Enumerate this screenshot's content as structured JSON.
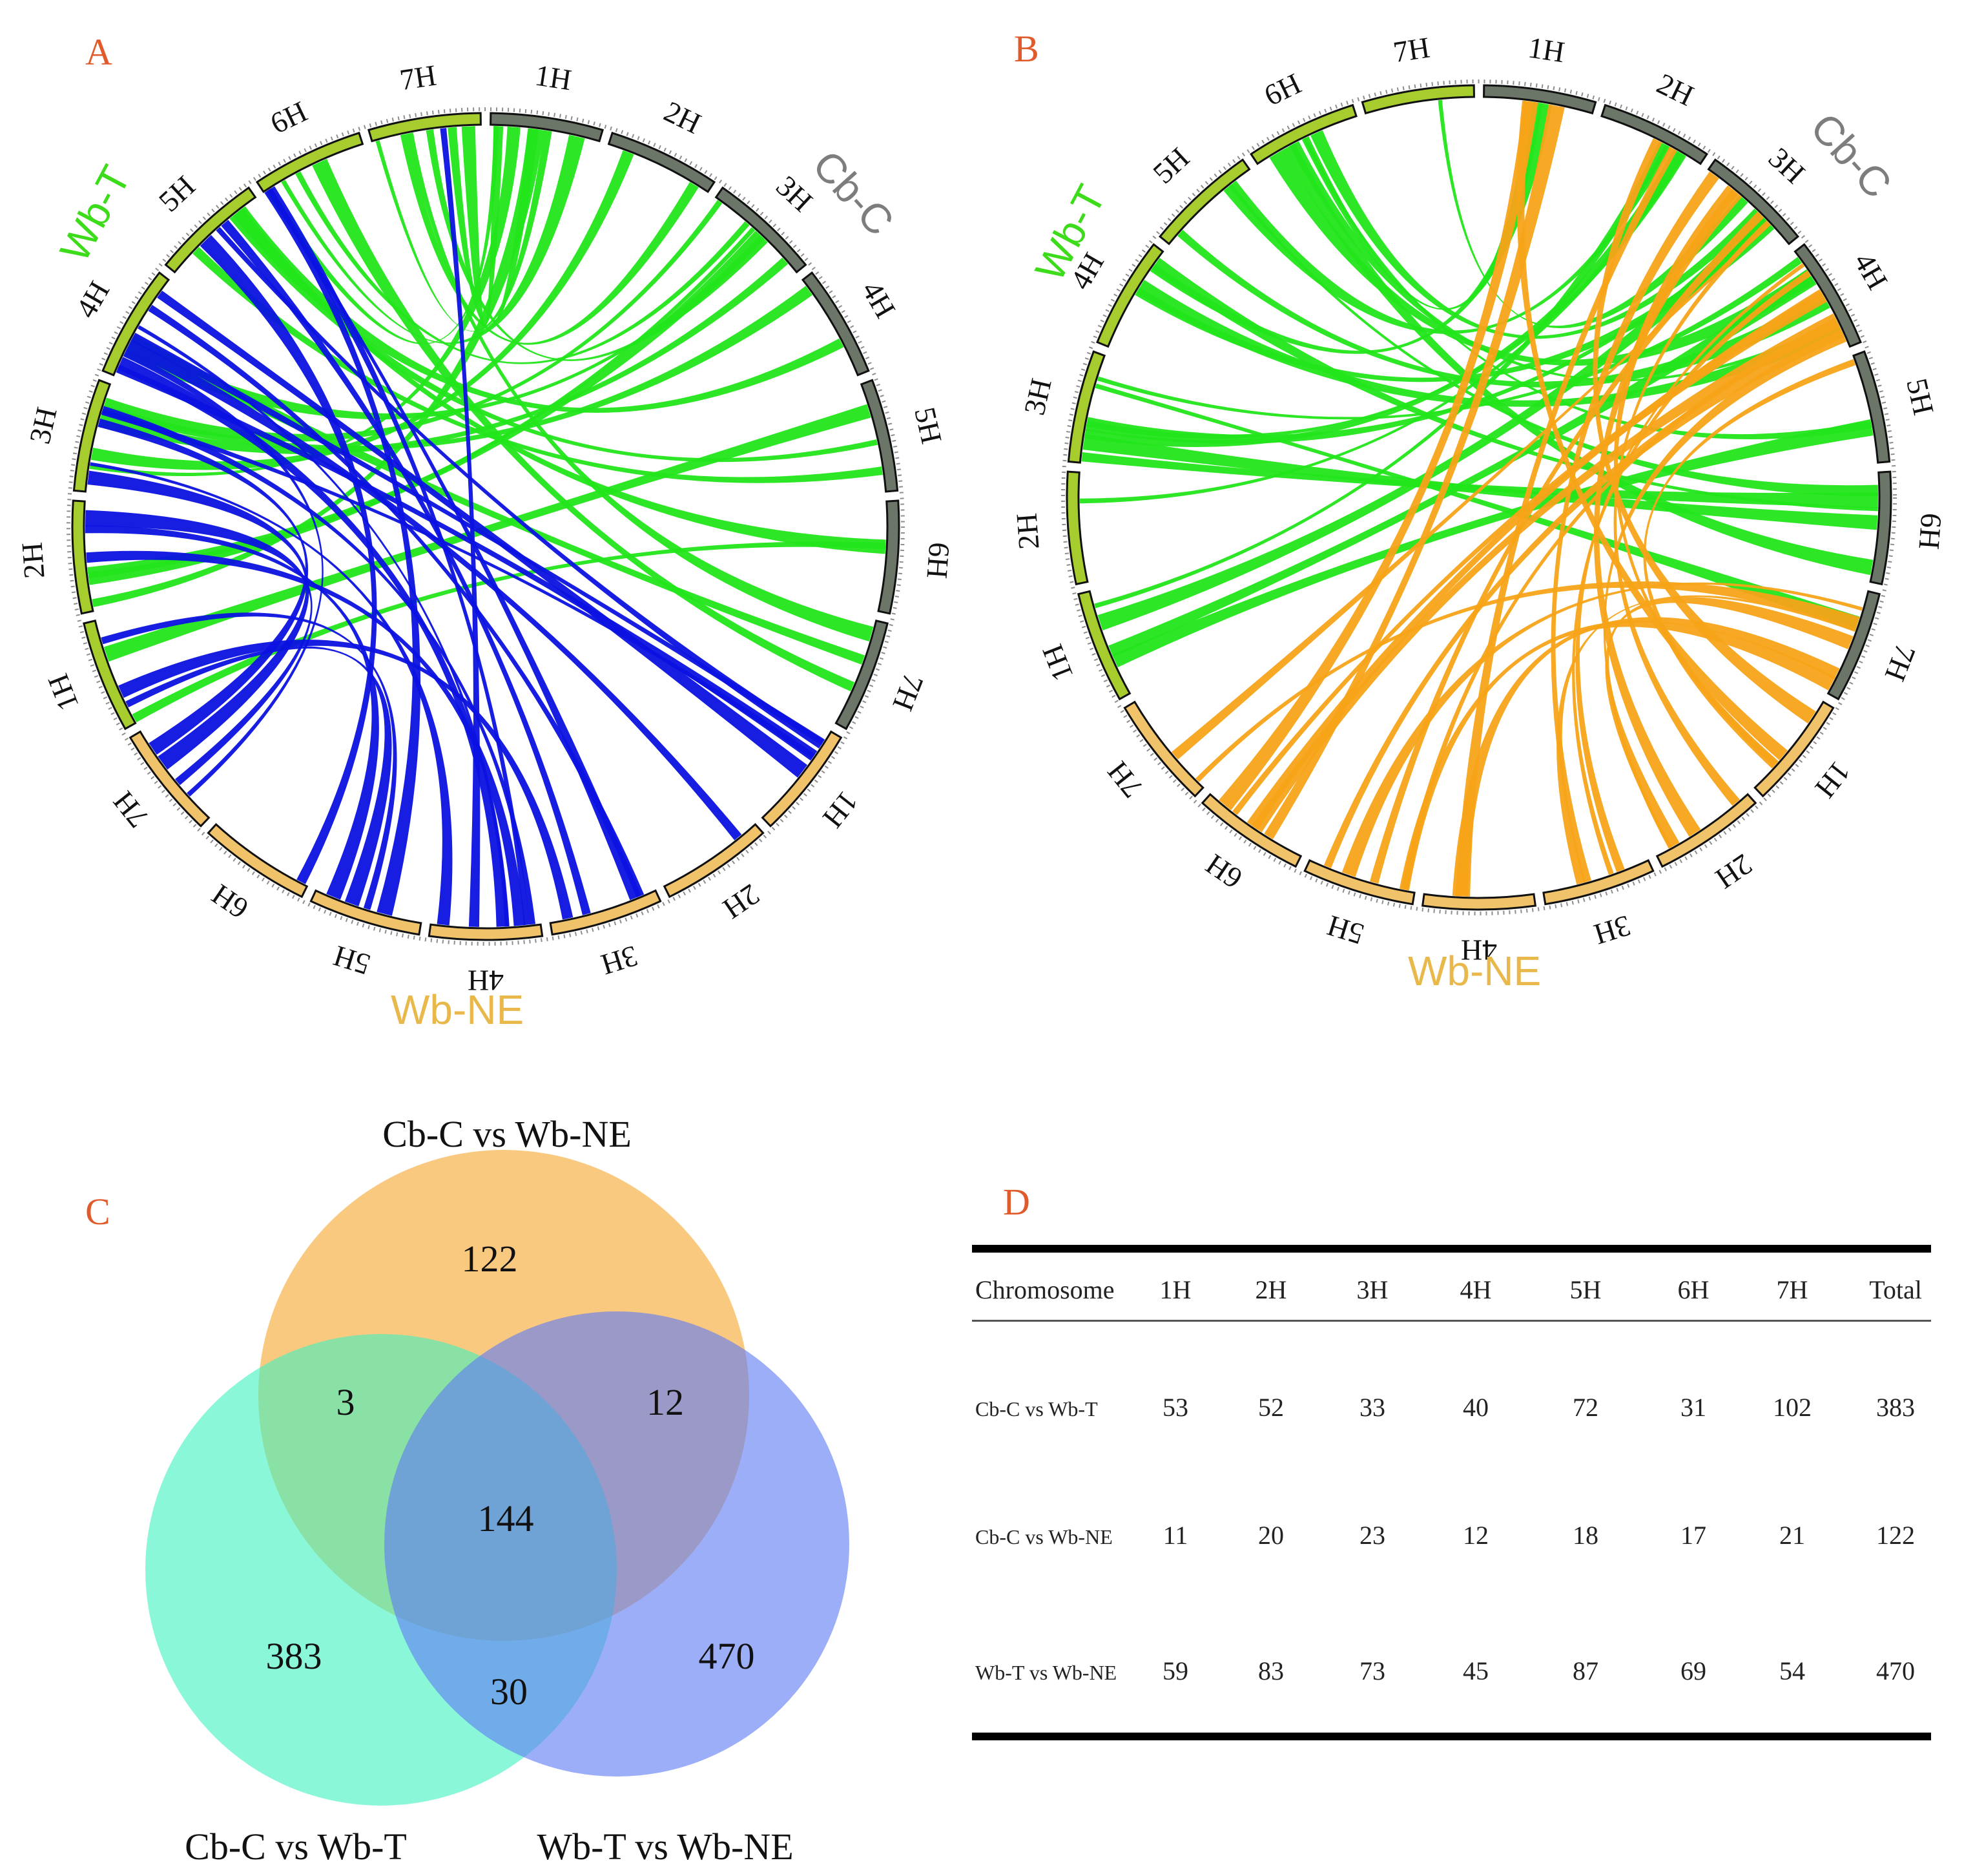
{
  "chart_data": [
    {
      "type": "circos",
      "panel": "A",
      "groups": [
        {
          "name": "Cb-C",
          "color": "#6b7568",
          "chromosomes": [
            "1H",
            "2H",
            "3H",
            "4H",
            "5H",
            "6H",
            "7H"
          ]
        },
        {
          "name": "Wb-NE",
          "color": "#f0c36b",
          "chromosomes": [
            "1H",
            "2H",
            "3H",
            "4H",
            "5H",
            "6H",
            "7H"
          ]
        },
        {
          "name": "Wb-T",
          "color": "#a6cc2e",
          "chromosomes": [
            "1H",
            "2H",
            "3H",
            "4H",
            "5H",
            "6H",
            "7H"
          ]
        }
      ],
      "group_label_colors": {
        "Cb-C": "#7d7d7d",
        "Wb-NE": "#e9b84a",
        "Wb-T": "#3ddc1a"
      },
      "links": [
        {
          "name": "Cb-C vs Wb-T",
          "color": "#22e61a"
        },
        {
          "name": "Wb-T vs Wb-NE",
          "color": "#0b12e0"
        }
      ]
    },
    {
      "type": "circos",
      "panel": "B",
      "groups": [
        {
          "name": "Cb-C",
          "color": "#6b7568",
          "chromosomes": [
            "1H",
            "2H",
            "3H",
            "4H",
            "5H",
            "6H",
            "7H"
          ]
        },
        {
          "name": "Wb-NE",
          "color": "#f0c36b",
          "chromosomes": [
            "1H",
            "2H",
            "3H",
            "4H",
            "5H",
            "6H",
            "7H"
          ]
        },
        {
          "name": "Wb-T",
          "color": "#a6cc2e",
          "chromosomes": [
            "1H",
            "2H",
            "3H",
            "4H",
            "5H",
            "6H",
            "7H"
          ]
        }
      ],
      "group_label_colors": {
        "Cb-C": "#7d7d7d",
        "Wb-NE": "#e9b84a",
        "Wb-T": "#3ddc1a"
      },
      "links": [
        {
          "name": "Cb-C vs Wb-T",
          "color": "#22e61a"
        },
        {
          "name": "Cb-C vs Wb-NE",
          "color": "#f7a318"
        }
      ]
    },
    {
      "type": "venn",
      "panel": "C",
      "sets": [
        {
          "name": "Cb-C vs Wb-NE",
          "color": "#f6b042"
        },
        {
          "name": "Cb-C vs Wb-T",
          "color": "#3df2c0"
        },
        {
          "name": "Wb-T vs Wb-NE",
          "color": "#5f7cf3"
        }
      ],
      "regions": {
        "only_cbc_wbne": "122",
        "cbc_wbne_and_cbc_wbt": "3",
        "cbc_wbne_and_wbt_wbne": "12",
        "all_three": "144",
        "only_cbc_wbt": "383",
        "only_wbt_wbne": "470",
        "cbc_wbt_and_wbt_wbne": "30"
      }
    },
    {
      "type": "table",
      "panel": "D",
      "columns": [
        "Chromosome",
        "1H",
        "2H",
        "3H",
        "4H",
        "5H",
        "6H",
        "7H",
        "Total"
      ],
      "rows": [
        {
          "label": "Cb-C vs Wb-T",
          "values": [
            "53",
            "52",
            "33",
            "40",
            "72",
            "31",
            "102",
            "383"
          ]
        },
        {
          "label": "Cb-C vs Wb-NE",
          "values": [
            "11",
            "20",
            "23",
            "12",
            "18",
            "17",
            "21",
            "122"
          ]
        },
        {
          "label": "Wb-T vs Wb-NE",
          "values": [
            "59",
            "83",
            "73",
            "45",
            "87",
            "69",
            "54",
            "470"
          ]
        }
      ]
    }
  ]
}
